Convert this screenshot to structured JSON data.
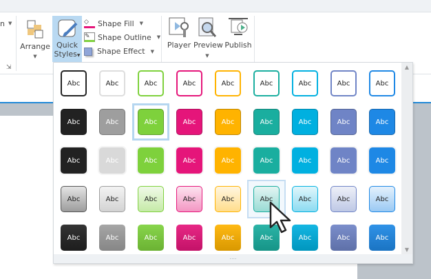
{
  "ribbon": {
    "partial_label": "n",
    "arrange": "Arrange",
    "quick_styles_line1": "Quick",
    "quick_styles_line2": "Styles",
    "shape_fill": "Shape Fill",
    "shape_outline": "Shape Outline",
    "shape_effect": "Shape Effect",
    "player": "Player",
    "preview": "Preview",
    "publish": "Publish"
  },
  "gallery": {
    "tile_text": "Abc",
    "colors": [
      "#222222",
      "#9e9e9e",
      "#7ed13c",
      "#e5157a",
      "#ffb300",
      "#1aae9f",
      "#00b0e0",
      "#6f84c6",
      "#1e88e5"
    ],
    "row_styles": [
      "outline",
      "filled-bordered",
      "flat",
      "light-gradient",
      "dark-gradient"
    ],
    "selected": {
      "row": 2,
      "col": 3
    },
    "hovered": {
      "row": 4,
      "col": 6
    },
    "grip": "...."
  }
}
